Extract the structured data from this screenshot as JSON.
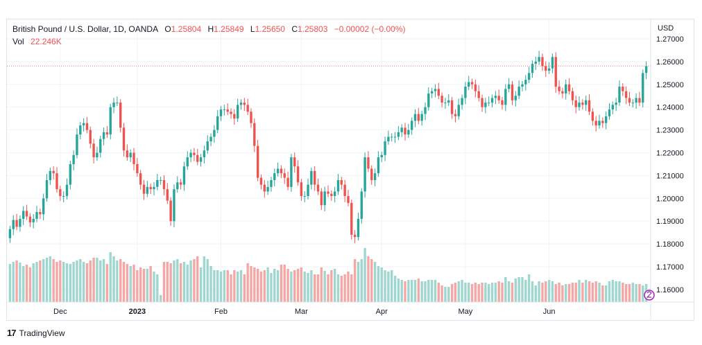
{
  "legend": {
    "symbol": "British Pound / U.S. Dollar, 1D, OANDA",
    "o_label": "O",
    "o_value": "1.25804",
    "h_label": "H",
    "h_value": "1.25849",
    "l_label": "L",
    "l_value": "1.25650",
    "c_label": "C",
    "c_value": "1.25803",
    "change": "−0.00002 (−0.00%)",
    "vol_label": "Vol",
    "vol_value": "22.246K"
  },
  "branding": {
    "logo": "17",
    "name": "TradingView"
  },
  "colors": {
    "up": "#26a69a",
    "down": "#ef5350",
    "up_volume": "#9fd6cf",
    "down_volume": "#f5a7a5",
    "grid": "#f0f3fa"
  },
  "chart_data": {
    "type": "candlestick",
    "title": "British Pound / U.S. Dollar, 1D, OANDA",
    "y_axis_unit": "USD",
    "y_ticks": [
      "1.27000",
      "1.26000",
      "1.25000",
      "1.24000",
      "1.23000",
      "1.22000",
      "1.21000",
      "1.20000",
      "1.19000",
      "1.18000",
      "1.17000",
      "1.16000"
    ],
    "x_labels": [
      "Dec",
      "2023",
      "Feb",
      "Mar",
      "Apr",
      "May",
      "Jun"
    ],
    "ylim": [
      1.1545,
      1.2785
    ],
    "last_price": 1.25803,
    "close": [
      1.1865,
      1.1905,
      1.1875,
      1.191,
      1.1945,
      1.192,
      1.1895,
      1.191,
      1.194,
      1.193,
      1.2,
      1.208,
      1.212,
      1.211,
      1.204,
      1.201,
      1.201,
      1.206,
      1.215,
      1.219,
      1.228,
      1.232,
      1.233,
      1.23,
      1.224,
      1.218,
      1.22,
      1.226,
      1.229,
      1.228,
      1.24,
      1.242,
      1.242,
      1.231,
      1.221,
      1.218,
      1.22,
      1.215,
      1.211,
      1.206,
      1.202,
      1.205,
      1.204,
      1.205,
      1.208,
      1.208,
      1.204,
      1.199,
      1.19,
      1.204,
      1.207,
      1.206,
      1.214,
      1.218,
      1.22,
      1.219,
      1.216,
      1.218,
      1.221,
      1.225,
      1.227,
      1.23,
      1.236,
      1.239,
      1.239,
      1.238,
      1.237,
      1.235,
      1.241,
      1.242,
      1.241,
      1.238,
      1.233,
      1.223,
      1.209,
      1.206,
      1.203,
      1.205,
      1.208,
      1.211,
      1.213,
      1.211,
      1.209,
      1.205,
      1.218,
      1.214,
      1.207,
      1.201,
      1.201,
      1.206,
      1.212,
      1.206,
      1.203,
      1.197,
      1.203,
      1.202,
      1.201,
      1.203,
      1.208,
      1.206,
      1.201,
      1.198,
      1.184,
      1.183,
      1.191,
      1.203,
      1.218,
      1.213,
      1.208,
      1.211,
      1.218,
      1.219,
      1.225,
      1.227,
      1.227,
      1.227,
      1.229,
      1.231,
      1.228,
      1.23,
      1.234,
      1.237,
      1.234,
      1.237,
      1.24,
      1.246,
      1.247,
      1.248,
      1.245,
      1.242,
      1.242,
      1.243,
      1.237,
      1.236,
      1.241,
      1.244,
      1.249,
      1.251,
      1.25,
      1.247,
      1.244,
      1.24,
      1.242,
      1.242,
      1.244,
      1.245,
      1.243,
      1.241,
      1.248,
      1.25,
      1.243,
      1.245,
      1.249,
      1.25,
      1.252,
      1.255,
      1.259,
      1.26,
      1.262,
      1.258,
      1.256,
      1.257,
      1.262,
      1.249,
      1.247,
      1.246,
      1.25,
      1.247,
      1.243,
      1.24,
      1.242,
      1.241,
      1.243,
      1.238,
      1.234,
      1.232,
      1.234,
      1.233,
      1.236,
      1.239,
      1.241,
      1.242,
      1.249,
      1.247,
      1.244,
      1.242,
      1.242,
      1.244,
      1.242,
      1.255,
      1.258
    ],
    "volume_rel": [
      0.55,
      0.58,
      0.6,
      0.57,
      0.52,
      0.54,
      0.5,
      0.56,
      0.58,
      0.6,
      0.62,
      0.64,
      0.66,
      0.62,
      0.58,
      0.6,
      0.58,
      0.56,
      0.55,
      0.58,
      0.6,
      0.62,
      0.58,
      0.56,
      0.6,
      0.64,
      0.64,
      0.6,
      0.62,
      0.55,
      0.72,
      0.66,
      0.6,
      0.62,
      0.58,
      0.55,
      0.52,
      0.54,
      0.46,
      0.5,
      0.48,
      0.48,
      0.52,
      0.44,
      0.4,
      0.1,
      0.58,
      0.58,
      0.56,
      0.6,
      0.62,
      0.56,
      0.58,
      0.54,
      0.6,
      0.62,
      0.66,
      0.5,
      0.66,
      0.62,
      0.52,
      0.46,
      0.46,
      0.44,
      0.46,
      0.46,
      0.4,
      0.46,
      0.44,
      0.46,
      0.4,
      0.56,
      0.52,
      0.5,
      0.48,
      0.44,
      0.46,
      0.5,
      0.42,
      0.48,
      0.46,
      0.54,
      0.54,
      0.48,
      0.44,
      0.46,
      0.48,
      0.5,
      0.44,
      0.42,
      0.46,
      0.4,
      0.4,
      0.5,
      0.45,
      0.4,
      0.46,
      0.48,
      0.4,
      0.38,
      0.4,
      0.44,
      0.4,
      0.62,
      0.58,
      0.62,
      0.78,
      0.66,
      0.62,
      0.58,
      0.52,
      0.5,
      0.46,
      0.44,
      0.46,
      0.38,
      0.34,
      0.32,
      0.3,
      0.32,
      0.32,
      0.32,
      0.34,
      0.3,
      0.3,
      0.32,
      0.32,
      0.32,
      0.28,
      0.24,
      0.22,
      0.22,
      0.26,
      0.28,
      0.3,
      0.32,
      0.28,
      0.28,
      0.26,
      0.28,
      0.26,
      0.28,
      0.28,
      0.26,
      0.28,
      0.28,
      0.3,
      0.28,
      0.36,
      0.3,
      0.28,
      0.34,
      0.36,
      0.36,
      0.32,
      0.4,
      0.3,
      0.24,
      0.3,
      0.28,
      0.3,
      0.32,
      0.3,
      0.26,
      0.28,
      0.24,
      0.26,
      0.26,
      0.28,
      0.28,
      0.32,
      0.28,
      0.32,
      0.3,
      0.28,
      0.3,
      0.28,
      0.24,
      0.24,
      0.3,
      0.32,
      0.3,
      0.3,
      0.28,
      0.26,
      0.26,
      0.28,
      0.26,
      0.26,
      0.24,
      0.26
    ]
  }
}
